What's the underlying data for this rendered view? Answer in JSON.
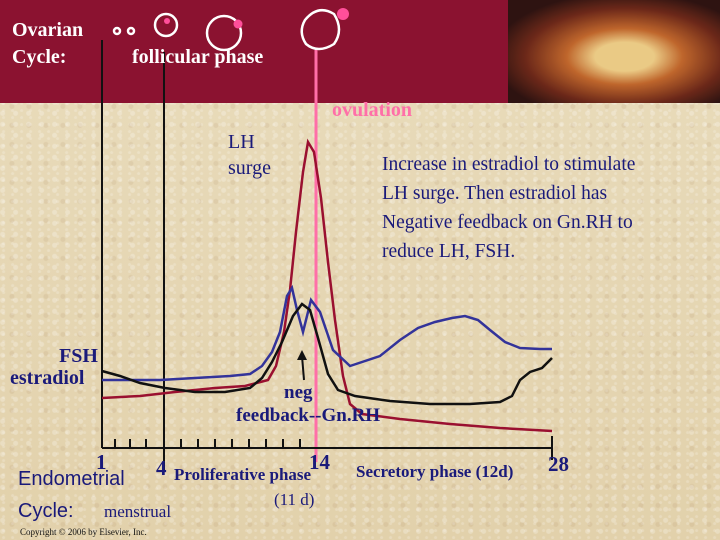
{
  "header": {
    "ovarian_line1": "Ovarian",
    "ovarian_line2": "Cycle:",
    "phase": "follicular phase",
    "ovulation": "ovulation"
  },
  "labels": {
    "lh_line1": "LH",
    "lh_line2": "surge",
    "fsh": "FSH",
    "estradiol": "estradiol",
    "neg_line1": "neg",
    "neg_line2": "feedback--Gn.RH",
    "note_lines": [
      "Increase in estradiol to stimulate",
      "LH surge.  Then estradiol has",
      "Negative feedback on Gn.RH to",
      "reduce LH, FSH."
    ]
  },
  "timeline": {
    "day1": "1",
    "day4": "4",
    "day14": "14",
    "day28": "28",
    "endometrial": "Endometrial",
    "cycle": "Cycle:",
    "menstrual": "menstrual",
    "proliferative": "Proliferative phase",
    "proliferative_duration": "(11 d)",
    "secretory": "Secretory phase (12d)"
  },
  "copyright": "Copyright © 2006 by Elsevier, Inc.",
  "colors": {
    "band": "#8b1230",
    "lh": "#9a1030",
    "fsh": "#111111",
    "estradiol": "#33339a",
    "ovulation_line": "#ff6fa8"
  }
}
